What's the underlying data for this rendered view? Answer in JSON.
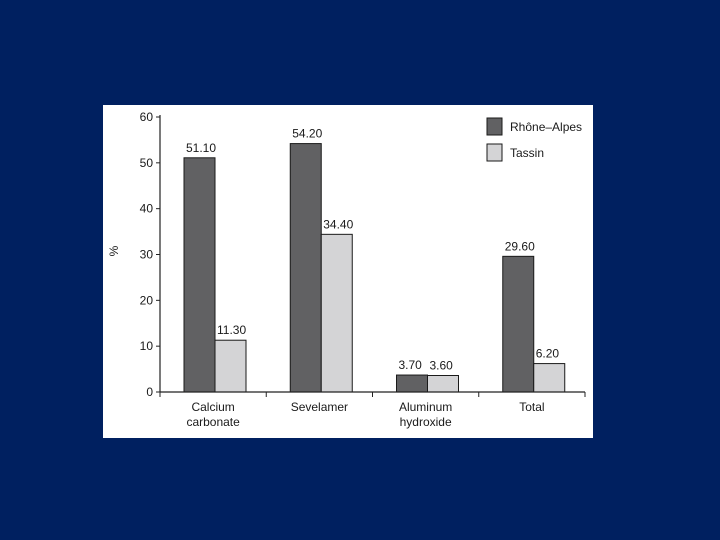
{
  "colors": {
    "background": "#002060",
    "panel": "#ffffff",
    "series_dark": "#616163",
    "series_light": "#d4d4d6",
    "axis": "#222222"
  },
  "chart_data": {
    "type": "bar",
    "title": "",
    "xlabel": "",
    "ylabel": "%",
    "ylim": [
      0,
      60
    ],
    "yticks": [
      0,
      10,
      20,
      30,
      40,
      50,
      60
    ],
    "grid": false,
    "legend_position": "top-right",
    "categories": [
      [
        "Calcium",
        "carbonate"
      ],
      [
        "Sevelamer"
      ],
      [
        "Aluminum",
        "hydroxide"
      ],
      [
        "Total"
      ]
    ],
    "series": [
      {
        "name": "Rhône–Alpes",
        "color": "#616163",
        "values": [
          51.1,
          54.2,
          3.7,
          29.6
        ],
        "labels": [
          "51.10",
          "54.20",
          "3.70",
          "29.60"
        ]
      },
      {
        "name": "Tassin",
        "color": "#d4d4d6",
        "values": [
          11.3,
          34.4,
          3.6,
          6.2
        ],
        "labels": [
          "11.30",
          "34.40",
          "3.60",
          "6.20"
        ]
      }
    ]
  }
}
